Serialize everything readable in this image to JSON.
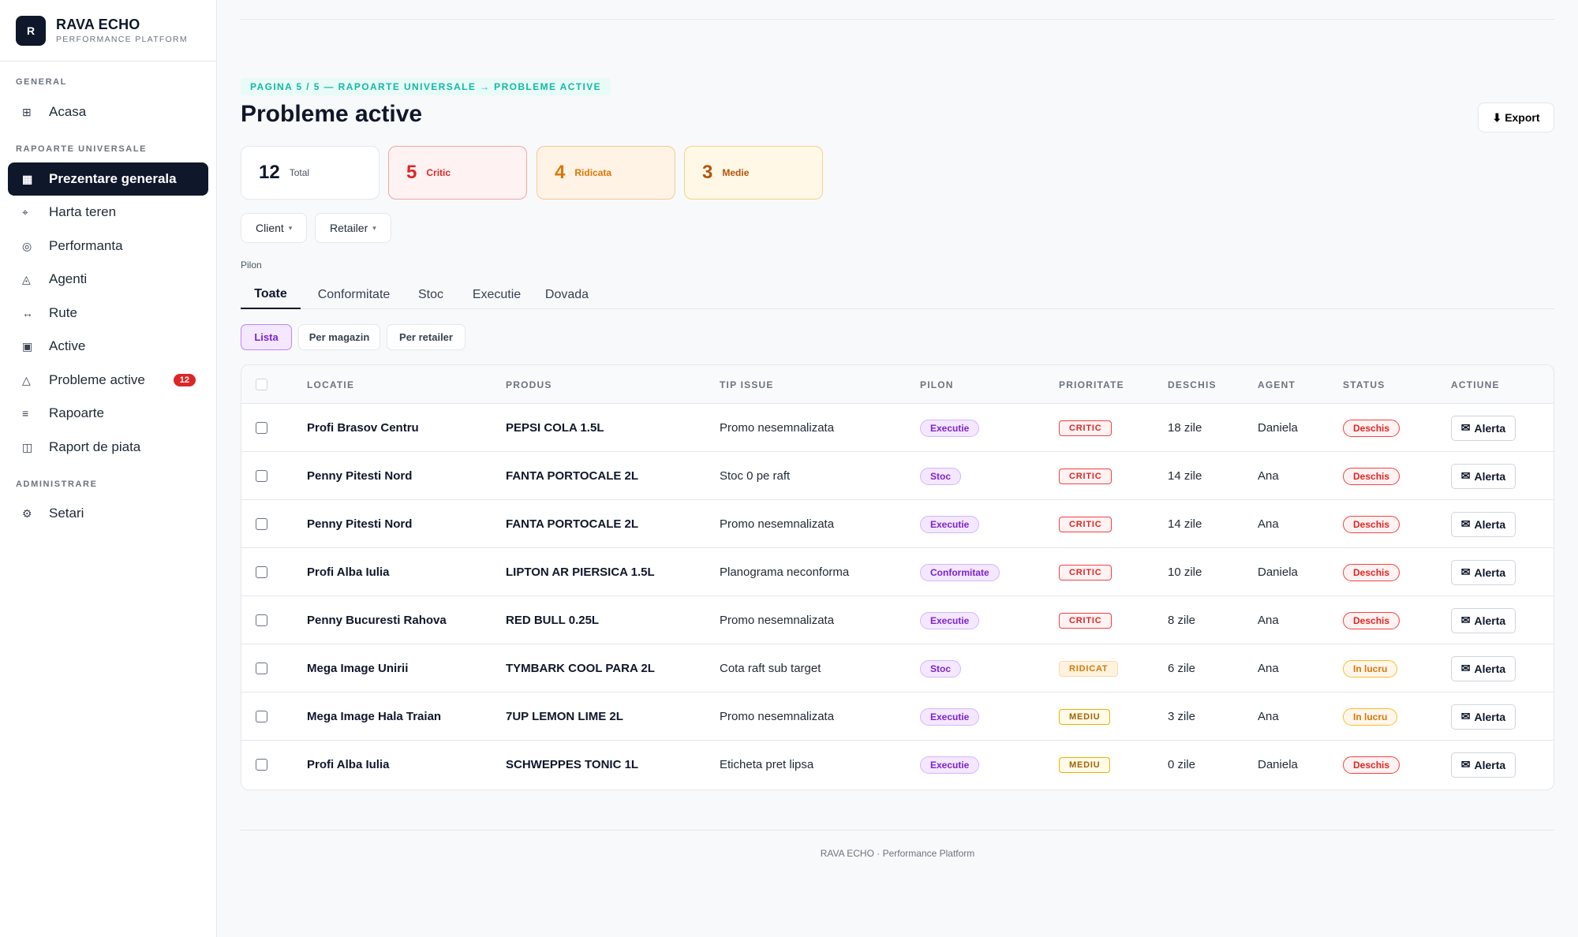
{
  "brand": {
    "logo_letter": "R",
    "name": "RAVA ECHO",
    "subtitle": "PERFORMANCE PLATFORM"
  },
  "sidebar": {
    "sections": [
      "GENERAL",
      "RAPOARTE UNIVERSALE",
      "ADMINISTRARE"
    ],
    "items": [
      {
        "label": "Acasa",
        "icon": "⊞",
        "icon_name": "grid-icon"
      },
      {
        "label": "Prezentare generala",
        "icon": "▦",
        "icon_name": "dashboard-icon",
        "active": true
      },
      {
        "label": "Harta teren",
        "icon": "⌖",
        "icon_name": "map-pin-icon"
      },
      {
        "label": "Performanta",
        "icon": "◎",
        "icon_name": "target-icon"
      },
      {
        "label": "Agenti",
        "icon": "◬",
        "icon_name": "agents-icon"
      },
      {
        "label": "Rute",
        "icon": "↔",
        "icon_name": "route-icon"
      },
      {
        "label": "Active",
        "icon": "▣",
        "icon_name": "assets-icon"
      },
      {
        "label": "Probleme active",
        "icon": "△",
        "icon_name": "warning-icon",
        "badge": "12"
      },
      {
        "label": "Rapoarte",
        "icon": "≡",
        "icon_name": "reports-icon"
      },
      {
        "label": "Raport de piata",
        "icon": "◫",
        "icon_name": "market-report-icon"
      },
      {
        "label": "Setari",
        "icon": "⚙",
        "icon_name": "gear-icon"
      }
    ]
  },
  "header": {
    "breadcrumb": "PAGINA 5 / 5 — RAPOARTE UNIVERSALE → PROBLEME ACTIVE",
    "title": "Probleme active",
    "export_label": "Export",
    "export_icon": "⬇"
  },
  "stats": [
    {
      "value": "12",
      "label": "Total"
    },
    {
      "value": "5",
      "label": "Critic"
    },
    {
      "value": "4",
      "label": "Ridicata"
    },
    {
      "value": "3",
      "label": "Medie"
    }
  ],
  "filters": [
    {
      "label": "Client",
      "caret": "▾"
    },
    {
      "label": "Retailer",
      "caret": "▾"
    }
  ],
  "pilon_label": "Pilon",
  "tabs": [
    "Toate",
    "Conformitate",
    "Stoc",
    "Executie",
    "Dovada"
  ],
  "views": [
    "Lista",
    "Per magazin",
    "Per retailer"
  ],
  "table": {
    "columns": [
      "LOCATIE",
      "PRODUS",
      "TIP ISSUE",
      "PILON",
      "PRIORITATE",
      "DESCHIS",
      "AGENT",
      "STATUS",
      "ACTIUNE"
    ],
    "action_label": "Alerta",
    "action_icon": "✉",
    "rows": [
      {
        "locatie": "Profi Brasov Centru",
        "produs": "PEPSI COLA 1.5L",
        "tip": "Promo nesemnalizata",
        "pilon": "Executie",
        "prioritate": "CRITIC",
        "deschis": "18 zile",
        "agent": "Daniela",
        "status": "Deschis"
      },
      {
        "locatie": "Penny Pitesti Nord",
        "produs": "FANTA PORTOCALE 2L",
        "tip": "Stoc 0 pe raft",
        "pilon": "Stoc",
        "prioritate": "CRITIC",
        "deschis": "14 zile",
        "agent": "Ana",
        "status": "Deschis"
      },
      {
        "locatie": "Penny Pitesti Nord",
        "produs": "FANTA PORTOCALE 2L",
        "tip": "Promo nesemnalizata",
        "pilon": "Executie",
        "prioritate": "CRITIC",
        "deschis": "14 zile",
        "agent": "Ana",
        "status": "Deschis"
      },
      {
        "locatie": "Profi Alba Iulia",
        "produs": "LIPTON AR PIERSICA 1.5L",
        "tip": "Planograma neconforma",
        "pilon": "Conformitate",
        "prioritate": "CRITIC",
        "deschis": "10 zile",
        "agent": "Daniela",
        "status": "Deschis"
      },
      {
        "locatie": "Penny Bucuresti Rahova",
        "produs": "RED BULL 0.25L",
        "tip": "Promo nesemnalizata",
        "pilon": "Executie",
        "prioritate": "CRITIC",
        "deschis": "8 zile",
        "agent": "Ana",
        "status": "Deschis"
      },
      {
        "locatie": "Mega Image Unirii",
        "produs": "TYMBARK COOL PARA 2L",
        "tip": "Cota raft sub target",
        "pilon": "Stoc",
        "prioritate": "RIDICAT",
        "deschis": "6 zile",
        "agent": "Ana",
        "status": "In lucru"
      },
      {
        "locatie": "Mega Image Hala Traian",
        "produs": "7UP LEMON LIME 2L",
        "tip": "Promo nesemnalizata",
        "pilon": "Executie",
        "prioritate": "MEDIU",
        "deschis": "3 zile",
        "agent": "Ana",
        "status": "In lucru"
      },
      {
        "locatie": "Profi Alba Iulia",
        "produs": "SCHWEPPES TONIC 1L",
        "tip": "Eticheta pret lipsa",
        "pilon": "Executie",
        "prioritate": "MEDIU",
        "deschis": "0 zile",
        "agent": "Daniela",
        "status": "Deschis"
      }
    ]
  },
  "footer": "RAVA ECHO · Performance Platform"
}
